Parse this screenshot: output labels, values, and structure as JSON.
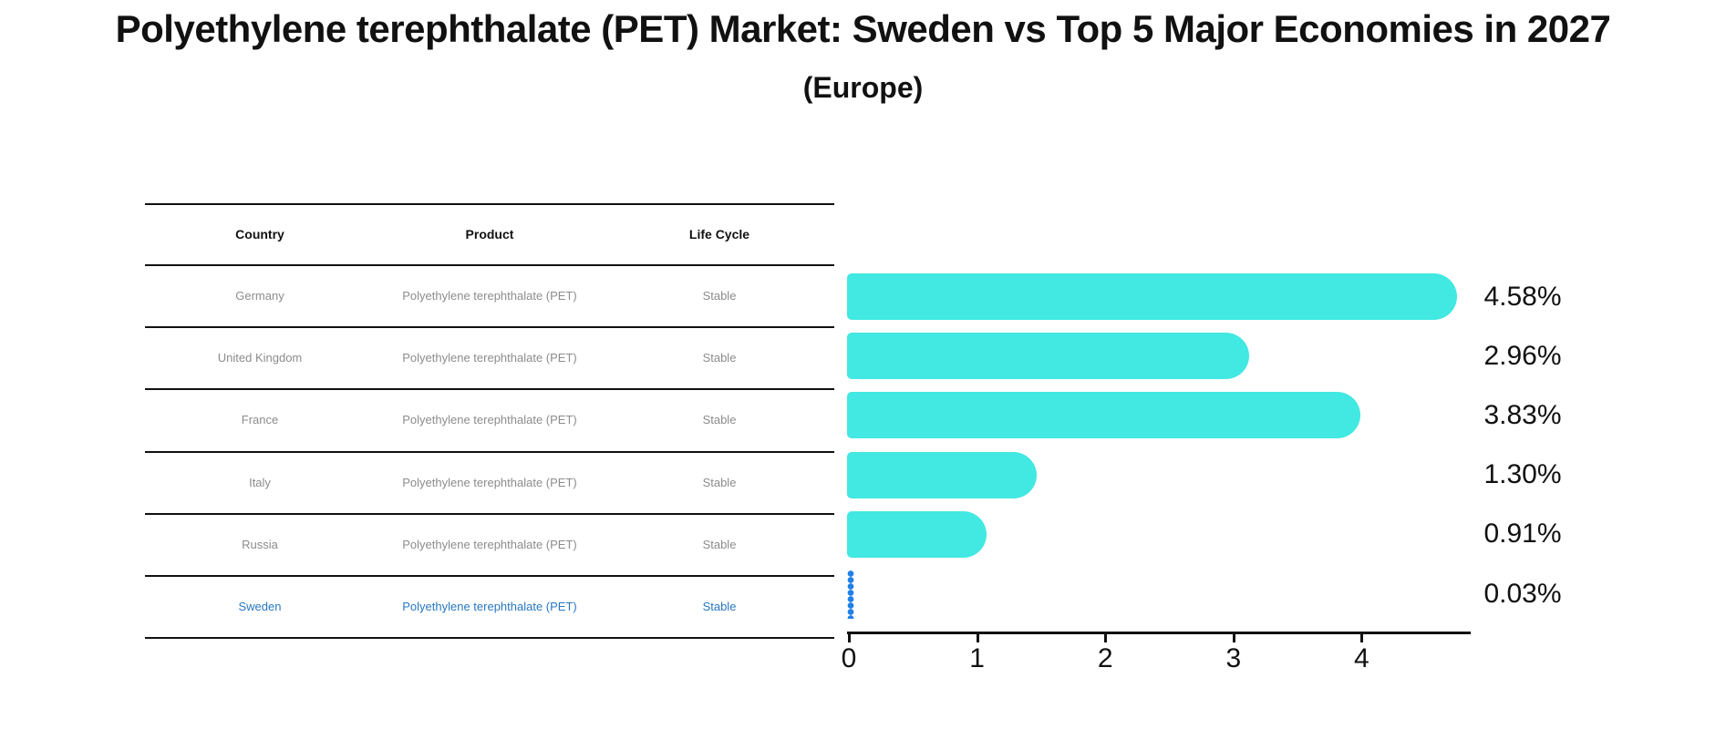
{
  "title": "Polyethylene terephthalate (PET) Market: Sweden vs Top 5 Major Economies in 2027",
  "subtitle": "(Europe)",
  "table": {
    "headers": {
      "country": "Country",
      "product": "Product",
      "life_cycle": "Life Cycle"
    },
    "rows": [
      {
        "country": "Germany",
        "product": "Polyethylene terephthalate (PET)",
        "life_cycle": "Stable"
      },
      {
        "country": "United Kingdom",
        "product": "Polyethylene terephthalate (PET)",
        "life_cycle": "Stable"
      },
      {
        "country": "France",
        "product": "Polyethylene terephthalate (PET)",
        "life_cycle": "Stable"
      },
      {
        "country": "Italy",
        "product": "Polyethylene terephthalate (PET)",
        "life_cycle": "Stable"
      },
      {
        "country": "Russia",
        "product": "Polyethylene terephthalate (PET)",
        "life_cycle": "Stable"
      },
      {
        "country": "Sweden",
        "product": "Polyethylene terephthalate (PET)",
        "life_cycle": "Stable"
      }
    ],
    "highlight_row": "Sweden"
  },
  "chart_data": {
    "type": "bar",
    "orientation": "horizontal",
    "categories": [
      "Germany",
      "United Kingdom",
      "France",
      "Italy",
      "Russia",
      "Sweden"
    ],
    "values": [
      4.58,
      2.96,
      3.83,
      1.3,
      0.91,
      0.03
    ],
    "value_labels": [
      "4.58%",
      "2.96%",
      "3.83%",
      "1.30%",
      "0.91%",
      "0.03%"
    ],
    "x_ticks": [
      "0",
      "1",
      "2",
      "3",
      "4"
    ],
    "xlim": [
      0,
      4.85
    ],
    "grid": false,
    "legend": "none",
    "bar_color": "#42e8e2",
    "highlight_color": "#2080e8",
    "highlight_index": 5,
    "unit": "%"
  }
}
